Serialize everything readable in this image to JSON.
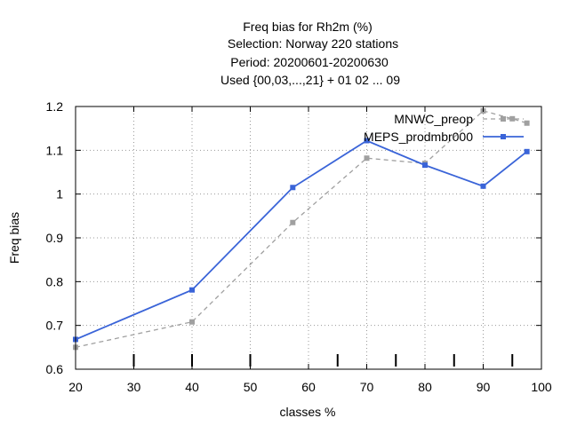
{
  "chart_data": {
    "type": "line",
    "title_lines": [
      "Freq bias  for Rh2m (%)",
      "Selection: Norway    220 stations",
      "Period: 20200601-20200630",
      "Used {00,03,...,21} + 01 02 ... 09"
    ],
    "xlabel": "classes %",
    "ylabel": "Freq bias",
    "xlim": [
      20,
      100
    ],
    "ylim": [
      0.6,
      1.2
    ],
    "xticks": [
      20,
      30,
      40,
      50,
      60,
      70,
      80,
      90,
      100
    ],
    "yticks": [
      0.6,
      0.7,
      0.8,
      0.9,
      1.0,
      1.1,
      1.2
    ],
    "xtick_labels": [
      "20",
      "30",
      "40",
      "50",
      "60",
      "70",
      "80",
      "90",
      "100"
    ],
    "ytick_labels": [
      "0.6",
      "0.7",
      "0.8",
      "0.9",
      "1",
      "1.1",
      "1.2"
    ],
    "class_marks": [
      30,
      40,
      50,
      65,
      75,
      85,
      95
    ],
    "grid": true,
    "legend_position": "top-right",
    "series": [
      {
        "name": "MNWC_preop",
        "color": "#a0a0a0",
        "style": "dashed",
        "x": [
          20,
          40,
          57.3,
          70,
          80,
          90,
          95,
          97.5
        ],
        "y": [
          0.65,
          0.708,
          0.935,
          1.082,
          1.07,
          1.19,
          1.172,
          1.162
        ]
      },
      {
        "name": "MEPS_prodmbr000",
        "color": "#3a64d8",
        "style": "solid",
        "x": [
          20,
          40,
          57.3,
          70,
          80,
          90,
          97.5
        ],
        "y": [
          0.668,
          0.781,
          1.015,
          1.122,
          1.066,
          1.018,
          1.097
        ]
      }
    ]
  }
}
